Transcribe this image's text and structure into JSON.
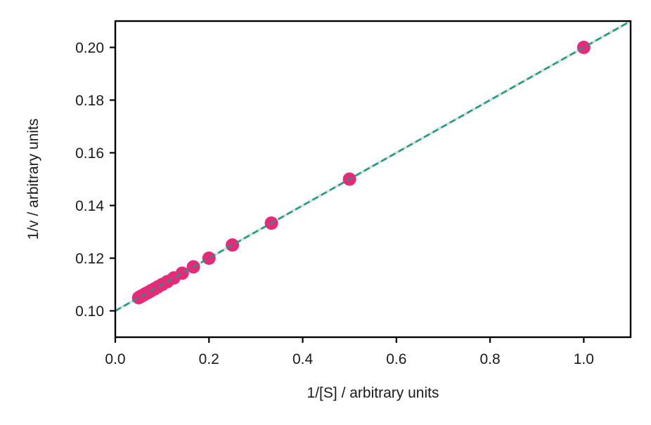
{
  "chart_data": {
    "type": "scatter",
    "title": "",
    "xlabel": "1/[S] / arbitrary units",
    "ylabel": "1/v / arbitrary units",
    "xlim": [
      0.0,
      1.1
    ],
    "ylim": [
      0.09,
      0.21
    ],
    "xticks": [
      0.0,
      0.2,
      0.4,
      0.6,
      0.8,
      1.0
    ],
    "xtick_labels": [
      "0.0",
      "0.2",
      "0.4",
      "0.6",
      "0.8",
      "1.0"
    ],
    "yticks": [
      0.1,
      0.12,
      0.14,
      0.16,
      0.18,
      0.2
    ],
    "ytick_labels": [
      "0.10",
      "0.12",
      "0.14",
      "0.16",
      "0.18",
      "0.20"
    ],
    "grid": false,
    "legend": null,
    "series": [
      {
        "name": "data",
        "kind": "scatter",
        "color": "#e8297a",
        "x": [
          1.0,
          0.5,
          0.3333,
          0.25,
          0.2,
          0.1667,
          0.1429,
          0.125,
          0.1111,
          0.1,
          0.0909,
          0.0833,
          0.0769,
          0.0714,
          0.0667,
          0.0625,
          0.0588,
          0.0556,
          0.0526,
          0.05
        ],
        "y": [
          0.2,
          0.15,
          0.1333,
          0.125,
          0.12,
          0.1167,
          0.1143,
          0.1125,
          0.1111,
          0.11,
          0.1091,
          0.1083,
          0.1077,
          0.1071,
          0.1067,
          0.1063,
          0.1059,
          0.1056,
          0.1053,
          0.105
        ]
      },
      {
        "name": "fit-true",
        "kind": "line",
        "color": "#dddddd",
        "style": "solid",
        "x": [
          0.0,
          1.1
        ],
        "y": [
          0.1,
          0.21
        ]
      },
      {
        "name": "fit",
        "kind": "line",
        "color": "#119e80",
        "style": "dashed",
        "x": [
          0.0,
          1.1
        ],
        "y": [
          0.1,
          0.21
        ]
      }
    ]
  }
}
